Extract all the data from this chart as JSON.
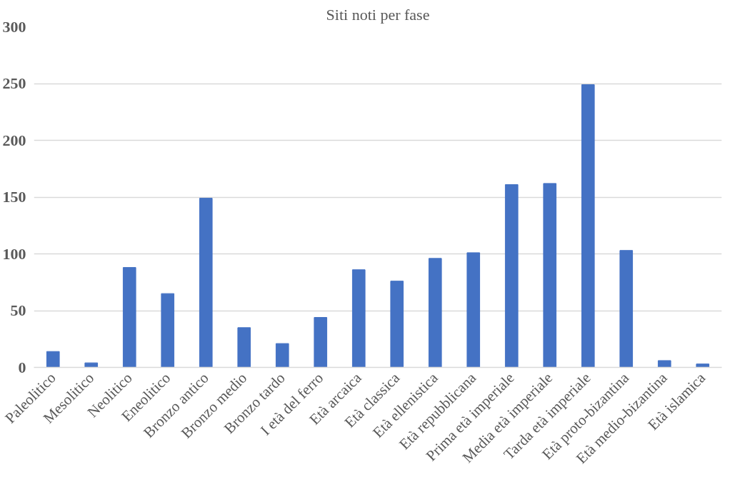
{
  "chart_data": {
    "type": "bar",
    "title": "Siti noti per fase",
    "categories": [
      "Paleolitico",
      "Mesolitico",
      "Neolitico",
      "Eneolitico",
      "Bronzo antico",
      "Bronzo medio",
      "Bronzo tardo",
      "I età del ferro",
      "Età arcaica",
      "Età classica",
      "Età ellenistica",
      "Età repubblicana",
      "Prima età imperiale",
      "Media età imperiale",
      "Tarda età imperiale",
      "Età proto-bizantina",
      "Età medio-bizantina",
      "Età islamica"
    ],
    "values": [
      14,
      4,
      88,
      65,
      149,
      35,
      21,
      44,
      86,
      76,
      96,
      101,
      161,
      162,
      249,
      103,
      6,
      3
    ],
    "color": "#4472c4",
    "ylim": [
      0,
      300
    ],
    "yticks": [
      0,
      50,
      100,
      150,
      200,
      250,
      300
    ],
    "grid": "y"
  }
}
